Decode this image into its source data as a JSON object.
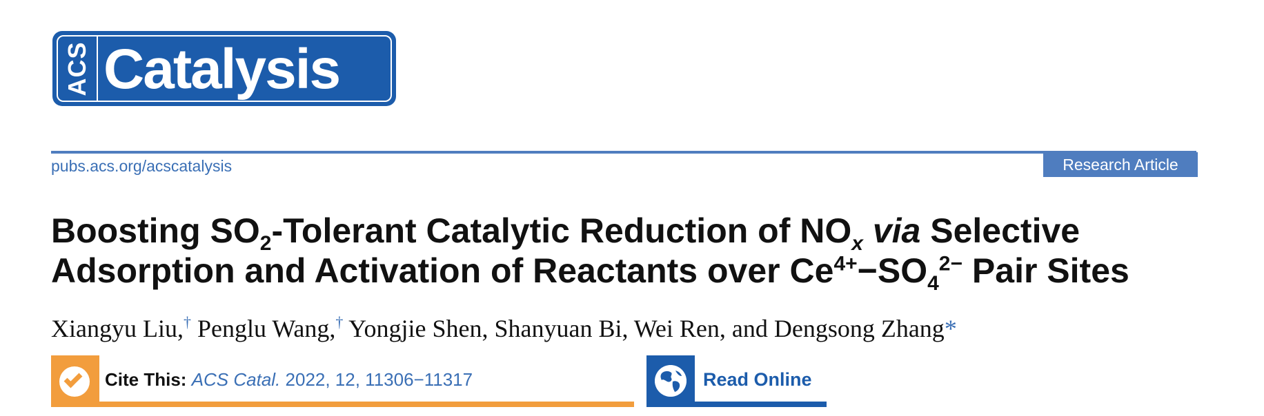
{
  "logo": {
    "acs": "ACS",
    "wordmark": "Catalysis"
  },
  "header": {
    "journal_url": "pubs.acs.org/acscatalysis",
    "article_type": "Research Article"
  },
  "title": {
    "p1": "Boosting SO",
    "sub1": "2",
    "p2": "-Tolerant Catalytic Reduction of NO",
    "sub2": "x",
    "p3": " ",
    "via": "via",
    "p4": " Selective Adsorption and Activation of Reactants over Ce",
    "sup1": "4+",
    "p5": "−SO",
    "sub3": "4",
    "sup2": "2−",
    "p6": " Pair Sites"
  },
  "authors": {
    "list": [
      {
        "name": "Xiangyu Liu,",
        "mark": "†"
      },
      {
        "name": " Penglu Wang,",
        "mark": "†"
      },
      {
        "name": " Yongjie Shen, Shanyuan Bi, Wei Ren, and Dengsong Zhang",
        "mark": ""
      }
    ],
    "corresponding_mark": "*"
  },
  "cite": {
    "label": "Cite This:",
    "journal": "ACS Catal.",
    "details": " 2022, 12, 11306−11317"
  },
  "read_online": {
    "label": "Read Online"
  },
  "colors": {
    "acs_blue": "#1c5cab",
    "link_blue": "#3a6fb5",
    "orange": "#f29d3d"
  },
  "icons": {
    "cite": "check-circle-icon",
    "read": "globe-icon"
  }
}
